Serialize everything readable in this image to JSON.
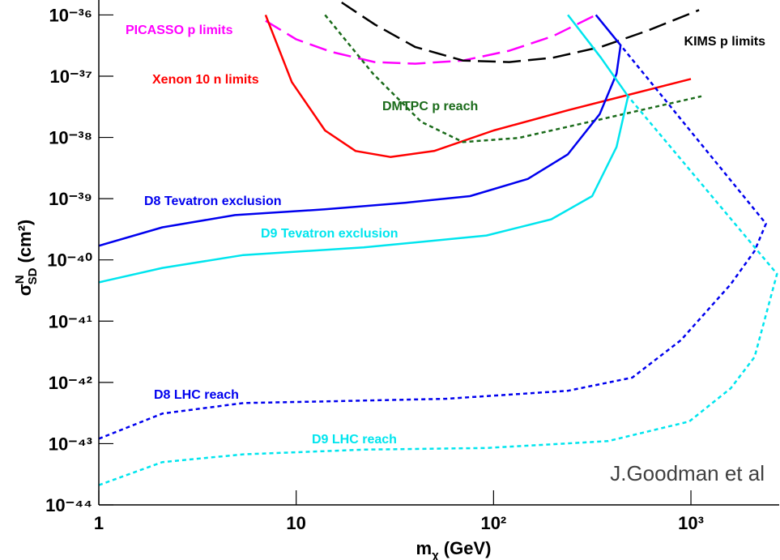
{
  "chart_data": {
    "type": "line",
    "log_x": true,
    "log_y": true,
    "xlabel": {
      "symbol": "m",
      "sub": "χ",
      "unit": "(GeV)"
    },
    "ylabel": {
      "symbol": "σ",
      "sup": "N",
      "sub": "SD",
      "unit": "(cm²)"
    },
    "annotation": "J.Goodman et al",
    "xlim": [
      1,
      2800
    ],
    "ylim": [
      1e-44,
      1.7e-36
    ],
    "xticks": [
      1,
      10,
      {
        "value": 100,
        "label": "10²"
      },
      {
        "value": 1000,
        "label": "10³"
      }
    ],
    "yticks": [
      {
        "value": 1e-44,
        "label": "10⁻⁴⁴"
      },
      {
        "value": 1e-43,
        "label": "10⁻⁴³"
      },
      {
        "value": 1e-42,
        "label": "10⁻⁴²"
      },
      {
        "value": 1e-41,
        "label": "10⁻⁴¹"
      },
      {
        "value": 1e-40,
        "label": "10⁻⁴⁰"
      },
      {
        "value": 1e-39,
        "label": "10⁻³⁹"
      },
      {
        "value": 1e-38,
        "label": "10⁻³⁸"
      },
      {
        "value": 1e-37,
        "label": "10⁻³⁷"
      },
      {
        "value": 1e-36,
        "label": "10⁻³⁶"
      }
    ],
    "series": [
      {
        "name": "PICASSO p limits",
        "color": "#ff00ff",
        "dash": "dashed",
        "x": [
          7,
          10,
          15,
          25,
          40,
          70,
          120,
          200,
          330
        ],
        "values": [
          8e-37,
          4e-37,
          2.5e-37,
          1.7e-37,
          1.6e-37,
          1.8e-37,
          2.6e-37,
          4.5e-37,
          1e-36
        ]
      },
      {
        "name": "KIMS p limits",
        "color": "#000000",
        "dash": "dashed",
        "x": [
          17,
          25,
          40,
          70,
          120,
          200,
          350,
          600,
          1100
        ],
        "values": [
          1.6e-36,
          7e-37,
          3e-37,
          1.8e-37,
          1.7e-37,
          2e-37,
          3e-37,
          5.5e-37,
          1.2e-36
        ]
      },
      {
        "name": "Xenon 10 n limits",
        "color": "#ff0000",
        "dash": "solid",
        "x": [
          7,
          9.5,
          14,
          20,
          30,
          50,
          100,
          240,
          1000
        ],
        "values": [
          1e-36,
          8e-38,
          1.3e-38,
          6e-39,
          4.8e-39,
          6e-39,
          1.3e-38,
          2.8e-38,
          9e-38
        ]
      },
      {
        "name": "DMTPC p reach",
        "color": "#1a6b1a",
        "dash": "dotted",
        "x": [
          14,
          24.5,
          43,
          70,
          134,
          380,
          1130
        ],
        "values": [
          1e-36,
          1.1e-37,
          1.8e-38,
          8.4e-39,
          9.8e-39,
          2.1e-38,
          4.7e-38
        ]
      },
      {
        "name": "D8 Tevatron exclusion",
        "color": "#0000ee",
        "dash": "solid",
        "x": [
          1,
          2.1,
          4.9,
          14,
          36,
          76,
          149,
          238,
          345,
          420,
          440,
          330
        ],
        "values": [
          1.7e-40,
          3.4e-40,
          5.4e-40,
          6.7e-40,
          8.6e-40,
          1.1e-39,
          2.1e-39,
          5.3e-39,
          2.4e-38,
          1.1e-37,
          3.2e-37,
          1e-36
        ]
      },
      {
        "name": "D9 Tevatron exclusion",
        "color": "#00e5ee",
        "dash": "solid",
        "x": [
          1,
          2.1,
          5.4,
          22,
          92,
          196,
          316,
          420,
          480,
          350,
          238
        ],
        "values": [
          4.3e-41,
          7.4e-41,
          1.2e-40,
          1.6e-40,
          2.5e-40,
          4.6e-40,
          1.1e-39,
          7e-39,
          4.7e-38,
          2e-37,
          1e-36
        ]
      },
      {
        "name": "D8 LHC reach",
        "color": "#0000ee",
        "dash": "dotted",
        "x": [
          1,
          2.1,
          5.4,
          14,
          57,
          238,
          505,
          890,
          1590,
          2100,
          2400,
          440
        ],
        "values": [
          1.2e-43,
          3.1e-43,
          4.6e-43,
          4.9e-43,
          5.4e-43,
          7.3e-43,
          1.2e-42,
          4.9e-42,
          4e-41,
          1.4e-40,
          3.9e-40,
          3.2e-37
        ]
      },
      {
        "name": "D9 LHC reach",
        "color": "#00e5ee",
        "dash": "dotted",
        "x": [
          1,
          2.1,
          5.4,
          22,
          92,
          380,
          980,
          1590,
          2100,
          2730,
          480
        ],
        "values": [
          2.1e-44,
          5e-44,
          6.7e-44,
          8e-44,
          8.5e-44,
          1.1e-43,
          2.3e-43,
          8e-43,
          2.6e-42,
          5.9e-41,
          4.7e-38
        ]
      }
    ]
  }
}
